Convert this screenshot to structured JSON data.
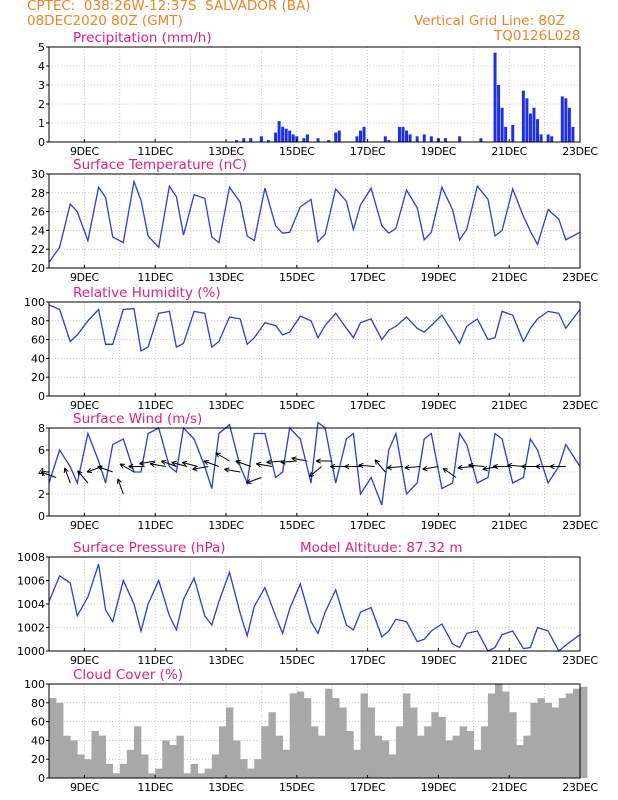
{
  "header": {
    "line1_left": "CPTEC:  038:26W-12:37S  SALVADOR (BA)",
    "line2_left": "08DEC2020 80Z (GMT)",
    "line2_right": "Vertical Grid Line: 80Z",
    "line3_right": "TQ0126L028"
  },
  "x_tick_labels": [
    "9DEC",
    "11DEC",
    "13DEC",
    "15DEC",
    "17DEC",
    "19DEC",
    "21DEC",
    "23DEC"
  ],
  "model_altitude": "Model Altitude: 87.32 m",
  "colors": {
    "line": "#2a3fd4",
    "bars": "#1f2fe8",
    "cloud": "#a8a8a8",
    "title": "#e0227e",
    "header": "#e8862a"
  },
  "chart_data": [
    {
      "type": "bar",
      "title": "Precipitation (mm/h)",
      "ylim": [
        0,
        5
      ],
      "yticks": [
        0,
        1,
        2,
        3,
        4,
        5
      ],
      "xlim": [
        8.0,
        23.0
      ],
      "x_unit": "day of December 2020",
      "x": [
        13.3,
        13.5,
        13.7,
        14.0,
        14.2,
        14.4,
        14.5,
        14.6,
        14.7,
        14.8,
        14.9,
        15.0,
        15.2,
        15.3,
        15.6,
        15.9,
        16.1,
        16.2,
        16.7,
        16.8,
        16.9,
        17.5,
        17.6,
        17.9,
        18.0,
        18.1,
        18.2,
        18.4,
        18.6,
        18.8,
        19.0,
        19.2,
        19.6,
        20.2,
        20.6,
        20.7,
        20.8,
        20.9,
        21.1,
        21.4,
        21.5,
        21.6,
        21.7,
        21.8,
        21.9,
        22.1,
        22.2,
        22.5,
        22.6,
        22.7,
        22.8
      ],
      "values": [
        0.1,
        0.2,
        0.2,
        0.3,
        0.1,
        0.5,
        1.1,
        0.8,
        0.7,
        0.6,
        0.4,
        0.3,
        0.2,
        0.4,
        0.2,
        0.1,
        0.5,
        0.6,
        0.3,
        0.6,
        0.8,
        0.3,
        0.1,
        0.8,
        0.8,
        0.6,
        0.4,
        0.3,
        0.4,
        0.3,
        0.2,
        0.2,
        0.3,
        0.2,
        4.7,
        3.0,
        1.8,
        0.8,
        0.9,
        2.7,
        2.3,
        1.5,
        1.8,
        1.2,
        0.4,
        0.4,
        0.3,
        2.4,
        2.3,
        1.8,
        0.8
      ]
    },
    {
      "type": "line",
      "title": "Surface Temperature (nC)",
      "ylim": [
        20,
        30
      ],
      "yticks": [
        20,
        22,
        24,
        26,
        28,
        30
      ],
      "xlim": [
        8.0,
        23.0
      ],
      "x_unit": "day of December 2020",
      "x": [
        8.0,
        8.3,
        8.6,
        8.8,
        9.1,
        9.4,
        9.6,
        9.8,
        10.1,
        10.4,
        10.6,
        10.8,
        11.1,
        11.4,
        11.6,
        11.8,
        12.1,
        12.4,
        12.6,
        12.8,
        13.1,
        13.4,
        13.6,
        13.8,
        14.1,
        14.4,
        14.6,
        14.8,
        15.1,
        15.4,
        15.6,
        15.8,
        16.1,
        16.4,
        16.6,
        16.8,
        17.1,
        17.4,
        17.6,
        17.8,
        18.1,
        18.4,
        18.6,
        18.8,
        19.1,
        19.4,
        19.6,
        19.8,
        20.1,
        20.4,
        20.6,
        20.8,
        21.1,
        21.4,
        21.6,
        21.8,
        22.1,
        22.4,
        22.6,
        23.0
      ],
      "values": [
        20.6,
        22.2,
        26.8,
        26.0,
        22.9,
        28.6,
        27.5,
        23.3,
        22.7,
        29.2,
        27.2,
        23.4,
        22.2,
        28.7,
        27.6,
        23.5,
        27.8,
        27.4,
        23.3,
        22.7,
        28.6,
        27.0,
        23.4,
        22.9,
        28.5,
        24.5,
        23.7,
        23.8,
        26.5,
        27.3,
        22.8,
        23.6,
        28.4,
        27.1,
        24.1,
        26.7,
        28.5,
        24.5,
        23.7,
        24.2,
        28.3,
        26.4,
        23.0,
        23.8,
        28.6,
        26.2,
        23.0,
        24.1,
        28.7,
        27.3,
        23.4,
        24.0,
        28.4,
        25.5,
        23.9,
        22.5,
        26.2,
        25.2,
        23.0,
        23.8
      ]
    },
    {
      "type": "line",
      "title": "Relative Humidity (%)",
      "ylim": [
        0,
        100
      ],
      "yticks": [
        0,
        20,
        40,
        60,
        80,
        100
      ],
      "xlim": [
        8.0,
        23.0
      ],
      "x_unit": "day of December 2020",
      "x": [
        8.0,
        8.3,
        8.6,
        8.8,
        9.1,
        9.4,
        9.6,
        9.8,
        10.1,
        10.4,
        10.6,
        10.8,
        11.1,
        11.4,
        11.6,
        11.8,
        12.1,
        12.4,
        12.6,
        12.8,
        13.1,
        13.4,
        13.6,
        13.8,
        14.1,
        14.4,
        14.6,
        14.8,
        15.1,
        15.4,
        15.6,
        15.8,
        16.1,
        16.4,
        16.6,
        16.8,
        17.1,
        17.4,
        17.6,
        17.8,
        18.1,
        18.4,
        18.6,
        18.8,
        19.1,
        19.4,
        19.6,
        19.8,
        20.1,
        20.4,
        20.6,
        20.8,
        21.1,
        21.4,
        21.6,
        21.8,
        22.1,
        22.4,
        22.6,
        23.0
      ],
      "values": [
        97,
        92,
        58,
        65,
        80,
        92,
        55,
        55,
        92,
        93,
        48,
        52,
        88,
        90,
        52,
        56,
        90,
        88,
        52,
        58,
        84,
        82,
        55,
        62,
        78,
        75,
        65,
        68,
        85,
        80,
        62,
        75,
        88,
        72,
        62,
        78,
        82,
        60,
        70,
        74,
        84,
        72,
        68,
        75,
        86,
        68,
        56,
        74,
        82,
        60,
        62,
        90,
        86,
        58,
        72,
        82,
        90,
        88,
        72,
        92
      ]
    },
    {
      "type": "line",
      "title": "Surface Wind (m/s)",
      "ylim": [
        0,
        8
      ],
      "yticks": [
        0,
        2,
        4,
        6,
        8
      ],
      "xlim": [
        8.0,
        23.0
      ],
      "x_unit": "day of December 2020",
      "x": [
        8.0,
        8.3,
        8.6,
        8.8,
        9.1,
        9.4,
        9.6,
        9.8,
        10.1,
        10.4,
        10.6,
        10.8,
        11.1,
        11.4,
        11.6,
        11.8,
        12.1,
        12.4,
        12.6,
        12.8,
        13.1,
        13.4,
        13.6,
        13.8,
        14.1,
        14.4,
        14.6,
        14.8,
        15.1,
        15.4,
        15.6,
        15.8,
        16.1,
        16.4,
        16.6,
        16.8,
        17.1,
        17.4,
        17.6,
        17.8,
        18.1,
        18.4,
        18.6,
        18.8,
        19.1,
        19.4,
        19.6,
        19.8,
        20.1,
        20.4,
        20.6,
        20.8,
        21.1,
        21.4,
        21.6,
        21.8,
        22.1,
        22.4,
        22.6,
        23.0
      ],
      "values": [
        3.0,
        6.0,
        4.5,
        3.0,
        7.5,
        5.0,
        3.0,
        6.5,
        7.0,
        4.0,
        4.0,
        7.5,
        8.0,
        4.5,
        4.0,
        8.0,
        7.0,
        4.5,
        2.5,
        7.5,
        8.3,
        4.5,
        3.0,
        7.5,
        7.5,
        3.5,
        4.0,
        8.0,
        7.0,
        3.0,
        8.5,
        8.0,
        3.0,
        7.0,
        7.5,
        2.0,
        3.5,
        1.0,
        6.0,
        7.5,
        2.0,
        3.0,
        7.0,
        7.5,
        2.5,
        3.0,
        7.5,
        6.5,
        3.0,
        3.5,
        7.5,
        7.0,
        3.0,
        3.5,
        7.0,
        6.0,
        3.0,
        4.5,
        6.5,
        4.5
      ]
    },
    {
      "type": "line",
      "title": "Surface Pressure (hPa)",
      "ylim": [
        1000,
        1008
      ],
      "yticks": [
        1000,
        1002,
        1004,
        1006,
        1008
      ],
      "xlim": [
        8.0,
        23.0
      ],
      "x_unit": "day of December 2020",
      "x": [
        8.0,
        8.3,
        8.6,
        8.8,
        9.1,
        9.4,
        9.6,
        9.8,
        10.1,
        10.4,
        10.6,
        10.8,
        11.1,
        11.4,
        11.6,
        11.8,
        12.1,
        12.4,
        12.6,
        12.8,
        13.1,
        13.4,
        13.6,
        13.8,
        14.1,
        14.4,
        14.6,
        14.8,
        15.1,
        15.4,
        15.6,
        15.8,
        16.1,
        16.4,
        16.6,
        16.8,
        17.1,
        17.4,
        17.6,
        17.8,
        18.1,
        18.4,
        18.6,
        18.8,
        19.1,
        19.4,
        19.6,
        19.8,
        20.1,
        20.4,
        20.6,
        20.8,
        21.1,
        21.4,
        21.6,
        21.8,
        22.1,
        22.4,
        22.6,
        23.0
      ],
      "values": [
        1004.2,
        1006.4,
        1005.8,
        1003.0,
        1004.6,
        1007.4,
        1003.5,
        1002.5,
        1006.0,
        1004.0,
        1001.7,
        1004.0,
        1006.0,
        1003.0,
        1001.8,
        1004.4,
        1006.2,
        1003.0,
        1002.2,
        1004.2,
        1006.7,
        1003.2,
        1001.3,
        1003.8,
        1005.4,
        1003.0,
        1001.5,
        1003.6,
        1005.7,
        1002.5,
        1001.5,
        1003.3,
        1005.2,
        1002.2,
        1001.8,
        1003.3,
        1003.7,
        1001.2,
        1001.7,
        1002.7,
        1002.5,
        1000.8,
        1001.0,
        1001.7,
        1002.3,
        1000.6,
        1000.3,
        1001.5,
        1001.7,
        1000.0,
        1000.3,
        1001.4,
        1001.7,
        1000.2,
        1000.3,
        1002.0,
        1001.7,
        1000.0,
        1000.5,
        1001.4
      ]
    },
    {
      "type": "area",
      "title": "Cloud Cover (%)",
      "ylim": [
        0,
        100
      ],
      "yticks": [
        0,
        20,
        40,
        60,
        80,
        100
      ],
      "xlim": [
        8.0,
        23.0
      ],
      "x_unit": "day of December 2020",
      "x": [
        8.0,
        8.2,
        8.4,
        8.6,
        8.8,
        9.0,
        9.2,
        9.4,
        9.6,
        9.8,
        10.0,
        10.2,
        10.4,
        10.6,
        10.8,
        11.0,
        11.2,
        11.4,
        11.6,
        11.8,
        12.0,
        12.2,
        12.4,
        12.6,
        12.8,
        13.0,
        13.2,
        13.4,
        13.6,
        13.8,
        14.0,
        14.2,
        14.4,
        14.6,
        14.8,
        15.0,
        15.2,
        15.4,
        15.6,
        15.8,
        16.0,
        16.2,
        16.4,
        16.6,
        16.8,
        17.0,
        17.2,
        17.4,
        17.6,
        17.8,
        18.0,
        18.2,
        18.4,
        18.6,
        18.8,
        19.0,
        19.2,
        19.4,
        19.6,
        19.8,
        20.0,
        20.2,
        20.4,
        20.6,
        20.8,
        21.0,
        21.2,
        21.4,
        21.6,
        21.8,
        22.0,
        22.2,
        22.4,
        22.6,
        22.8,
        23.0
      ],
      "values": [
        85,
        80,
        45,
        40,
        25,
        20,
        50,
        45,
        15,
        5,
        15,
        30,
        55,
        25,
        5,
        10,
        40,
        35,
        45,
        5,
        15,
        5,
        10,
        25,
        55,
        75,
        40,
        20,
        10,
        20,
        55,
        70,
        45,
        30,
        90,
        92,
        85,
        55,
        45,
        95,
        85,
        75,
        50,
        30,
        90,
        75,
        45,
        40,
        25,
        55,
        90,
        75,
        45,
        55,
        70,
        65,
        40,
        45,
        55,
        50,
        30,
        55,
        90,
        100,
        92,
        70,
        35,
        45,
        80,
        85,
        80,
        75,
        85,
        90,
        95,
        97
      ]
    }
  ],
  "wind_arrows": {
    "x": [
      8.2,
      8.6,
      9.1,
      9.5,
      9.8,
      10.1,
      10.4,
      10.7,
      11.0,
      11.3,
      11.6,
      11.9,
      12.2,
      12.5,
      12.8,
      13.1,
      13.4,
      13.7,
      14.0,
      14.3,
      14.6,
      15.0,
      15.3,
      15.7,
      16.0,
      16.4,
      16.8,
      17.2,
      17.5,
      18.0,
      18.5,
      19.0,
      19.5,
      20.0,
      20.3,
      20.7,
      21.0,
      21.4,
      21.8,
      22.2,
      22.6
    ],
    "speed": [
      3.5,
      3.0,
      3.0,
      4.5,
      4.0,
      2.0,
      4.0,
      4.5,
      5.0,
      4.5,
      4.5,
      4.5,
      4.5,
      4.5,
      4.5,
      5.0,
      4.0,
      4.5,
      3.5,
      4.5,
      5.0,
      5.0,
      5.0,
      4.5,
      5.0,
      4.5,
      4.5,
      4.5,
      4.0,
      4.5,
      4.5,
      4.5,
      3.5,
      4.5,
      4.5,
      4.5,
      4.5,
      4.5,
      4.5,
      4.5,
      4.5
    ],
    "direction_deg": [
      200,
      250,
      230,
      160,
      200,
      250,
      210,
      180,
      170,
      190,
      200,
      195,
      195,
      170,
      200,
      210,
      190,
      200,
      160,
      190,
      175,
      175,
      190,
      140,
      180,
      180,
      180,
      185,
      230,
      175,
      175,
      170,
      215,
      175,
      185,
      170,
      180,
      185,
      180,
      180,
      180
    ]
  }
}
